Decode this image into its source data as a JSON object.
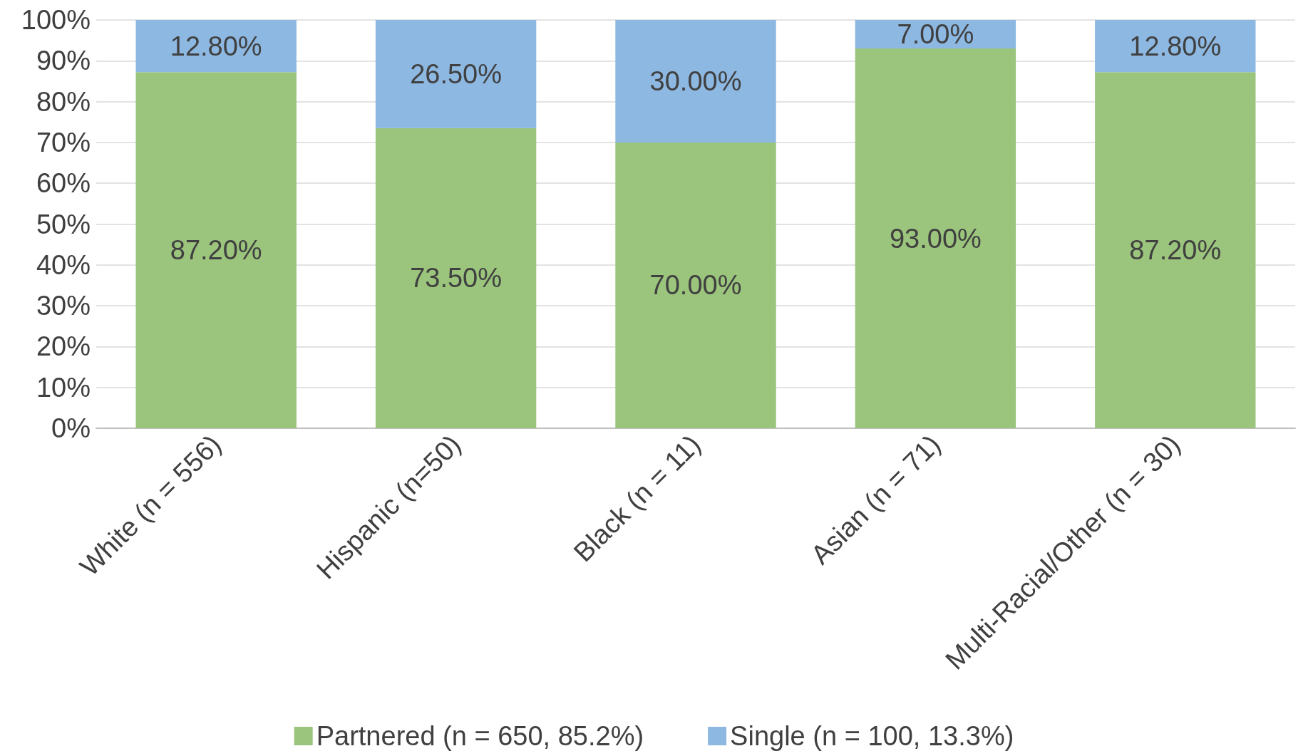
{
  "chart_data": {
    "type": "bar",
    "stacked": true,
    "categories": [
      "White (n = 556)",
      "Hispanic (n=50)",
      "Black (n = 11)",
      "Asian (n = 71)",
      "Multi-Racial/Other (n = 30)"
    ],
    "series": [
      {
        "name": "Partnered (n = 650, 85.2%)",
        "color": "#9bc47c",
        "values": [
          87.2,
          73.5,
          70.0,
          93.0,
          87.2
        ],
        "value_labels": [
          "87.20%",
          "73.50%",
          "70.00%",
          "93.00%",
          "87.20%"
        ]
      },
      {
        "name": "Single (n = 100, 13.3%)",
        "color": "#8db8e2",
        "values": [
          12.8,
          26.5,
          30.0,
          7.0,
          12.8
        ],
        "value_labels": [
          "12.80%",
          "26.50%",
          "30.00%",
          "7.00%",
          "12.80%"
        ]
      }
    ],
    "ylim": [
      0,
      100
    ],
    "yticks": [
      {
        "value": 0,
        "label": "0%"
      },
      {
        "value": 10,
        "label": "10%"
      },
      {
        "value": 20,
        "label": "20%"
      },
      {
        "value": 30,
        "label": "30%"
      },
      {
        "value": 40,
        "label": "40%"
      },
      {
        "value": 50,
        "label": "50%"
      },
      {
        "value": 60,
        "label": "60%"
      },
      {
        "value": 70,
        "label": "70%"
      },
      {
        "value": 80,
        "label": "80%"
      },
      {
        "value": 90,
        "label": "90%"
      },
      {
        "value": 100,
        "label": "100%"
      }
    ],
    "grid": "y",
    "legend": "bottom"
  }
}
